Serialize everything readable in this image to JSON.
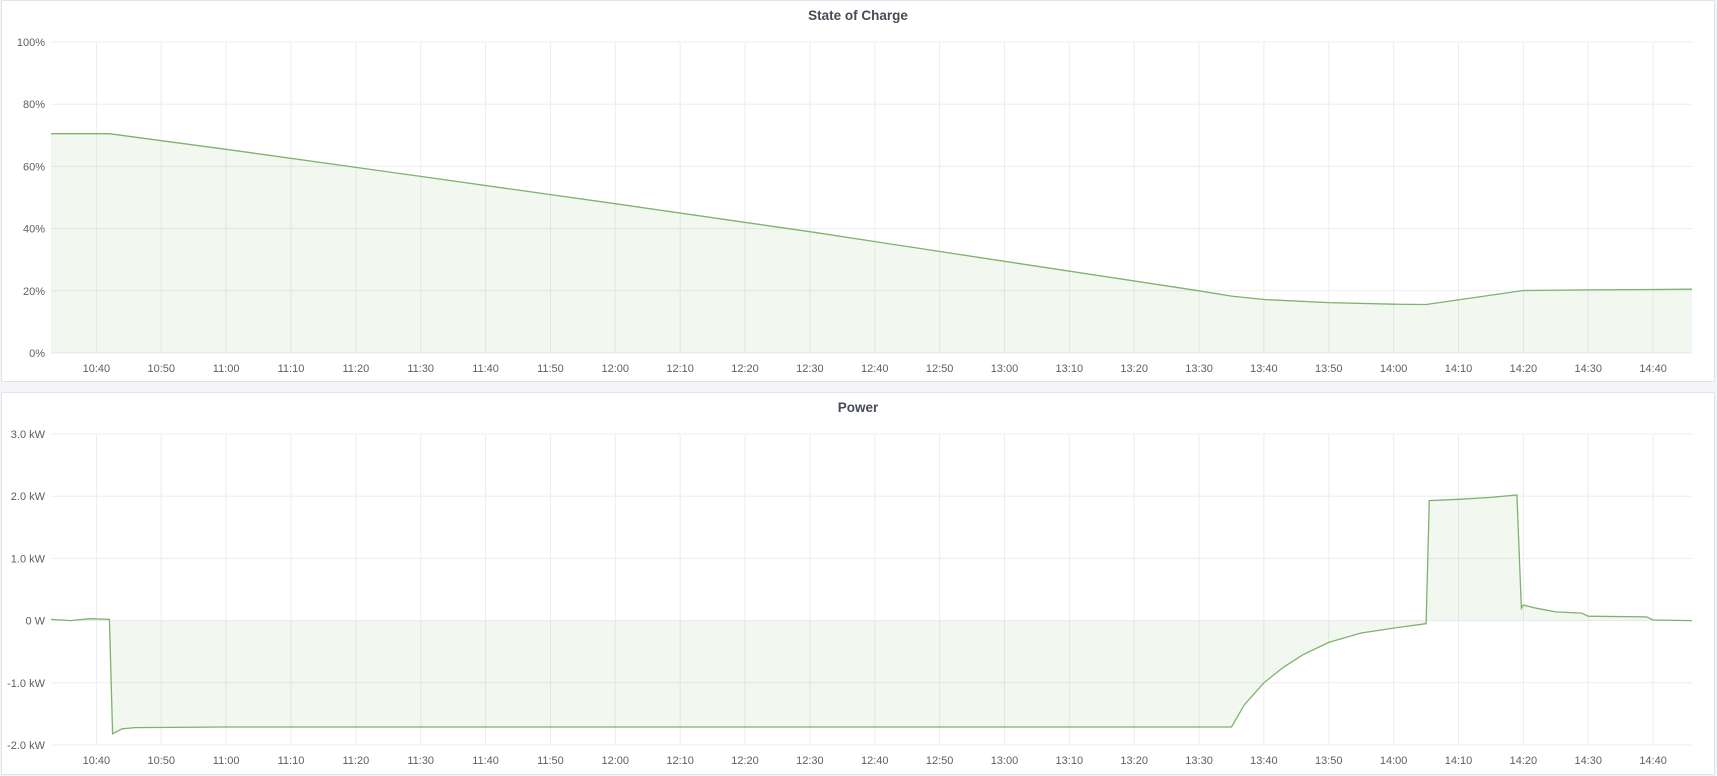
{
  "chart_data": [
    {
      "type": "area",
      "title": "State of Charge",
      "xlabel": "",
      "ylabel": "",
      "x_ticks": [
        "10:40",
        "10:50",
        "11:00",
        "11:10",
        "11:20",
        "11:30",
        "11:40",
        "11:50",
        "12:00",
        "12:10",
        "12:20",
        "12:30",
        "12:40",
        "12:50",
        "13:00",
        "13:10",
        "13:20",
        "13:30",
        "13:40",
        "13:50",
        "14:00",
        "14:10",
        "14:20",
        "14:30",
        "14:40"
      ],
      "y_ticks": [
        "0%",
        "20%",
        "40%",
        "60%",
        "80%",
        "100%"
      ],
      "xlim": [
        "10:33",
        "14:46"
      ],
      "ylim": [
        0,
        100
      ],
      "unit": "%",
      "grid": true,
      "color": "#7eb26d",
      "points": [
        [
          "10:33",
          70.5
        ],
        [
          "10:42",
          70.5
        ],
        [
          "11:00",
          65.5
        ],
        [
          "11:30",
          56.8
        ],
        [
          "12:00",
          48
        ],
        [
          "12:30",
          39
        ],
        [
          "13:00",
          29.5
        ],
        [
          "13:30",
          20
        ],
        [
          "13:35",
          18.3
        ],
        [
          "13:40",
          17.2
        ],
        [
          "13:50",
          16.2
        ],
        [
          "14:00",
          15.7
        ],
        [
          "14:05",
          15.6
        ],
        [
          "14:20",
          20.1
        ],
        [
          "14:30",
          20.3
        ],
        [
          "14:46",
          20.5
        ]
      ]
    },
    {
      "type": "area",
      "title": "Power",
      "xlabel": "",
      "ylabel": "",
      "x_ticks": [
        "10:40",
        "10:50",
        "11:00",
        "11:10",
        "11:20",
        "11:30",
        "11:40",
        "11:50",
        "12:00",
        "12:10",
        "12:20",
        "12:30",
        "12:40",
        "12:50",
        "13:00",
        "13:10",
        "13:20",
        "13:30",
        "13:40",
        "13:50",
        "14:00",
        "14:10",
        "14:20",
        "14:30",
        "14:40"
      ],
      "y_ticks": [
        "-2.0 kW",
        "-1.0 kW",
        "0 W",
        "1.0 kW",
        "2.0 kW",
        "3.0 kW"
      ],
      "xlim": [
        "10:33",
        "14:46"
      ],
      "ylim": [
        -2,
        3
      ],
      "unit": "kW",
      "grid": true,
      "color": "#7eb26d",
      "points": [
        [
          "10:33",
          0.02
        ],
        [
          "10:36",
          0.0
        ],
        [
          "10:39",
          0.03
        ],
        [
          "10:42",
          0.02
        ],
        [
          "10:42.5",
          -1.82
        ],
        [
          "10:44",
          -1.74
        ],
        [
          "10:46",
          -1.72
        ],
        [
          "11:00",
          -1.71
        ],
        [
          "11:30",
          -1.71
        ],
        [
          "12:00",
          -1.71
        ],
        [
          "12:30",
          -1.71
        ],
        [
          "13:00",
          -1.71
        ],
        [
          "13:30",
          -1.71
        ],
        [
          "13:35",
          -1.71
        ],
        [
          "13:37",
          -1.35
        ],
        [
          "13:40",
          -1.0
        ],
        [
          "13:43",
          -0.75
        ],
        [
          "13:46",
          -0.55
        ],
        [
          "13:50",
          -0.35
        ],
        [
          "13:55",
          -0.2
        ],
        [
          "14:00",
          -0.12
        ],
        [
          "14:05",
          -0.05
        ],
        [
          "14:05.5",
          1.93
        ],
        [
          "14:10",
          1.95
        ],
        [
          "14:15",
          1.98
        ],
        [
          "14:19",
          2.02
        ],
        [
          "14:19.7",
          0.2
        ],
        [
          "14:20",
          0.25
        ],
        [
          "14:22",
          0.2
        ],
        [
          "14:25",
          0.14
        ],
        [
          "14:29",
          0.12
        ],
        [
          "14:30",
          0.07
        ],
        [
          "14:39",
          0.06
        ],
        [
          "14:40",
          0.01
        ],
        [
          "14:46",
          0.0
        ]
      ]
    }
  ]
}
